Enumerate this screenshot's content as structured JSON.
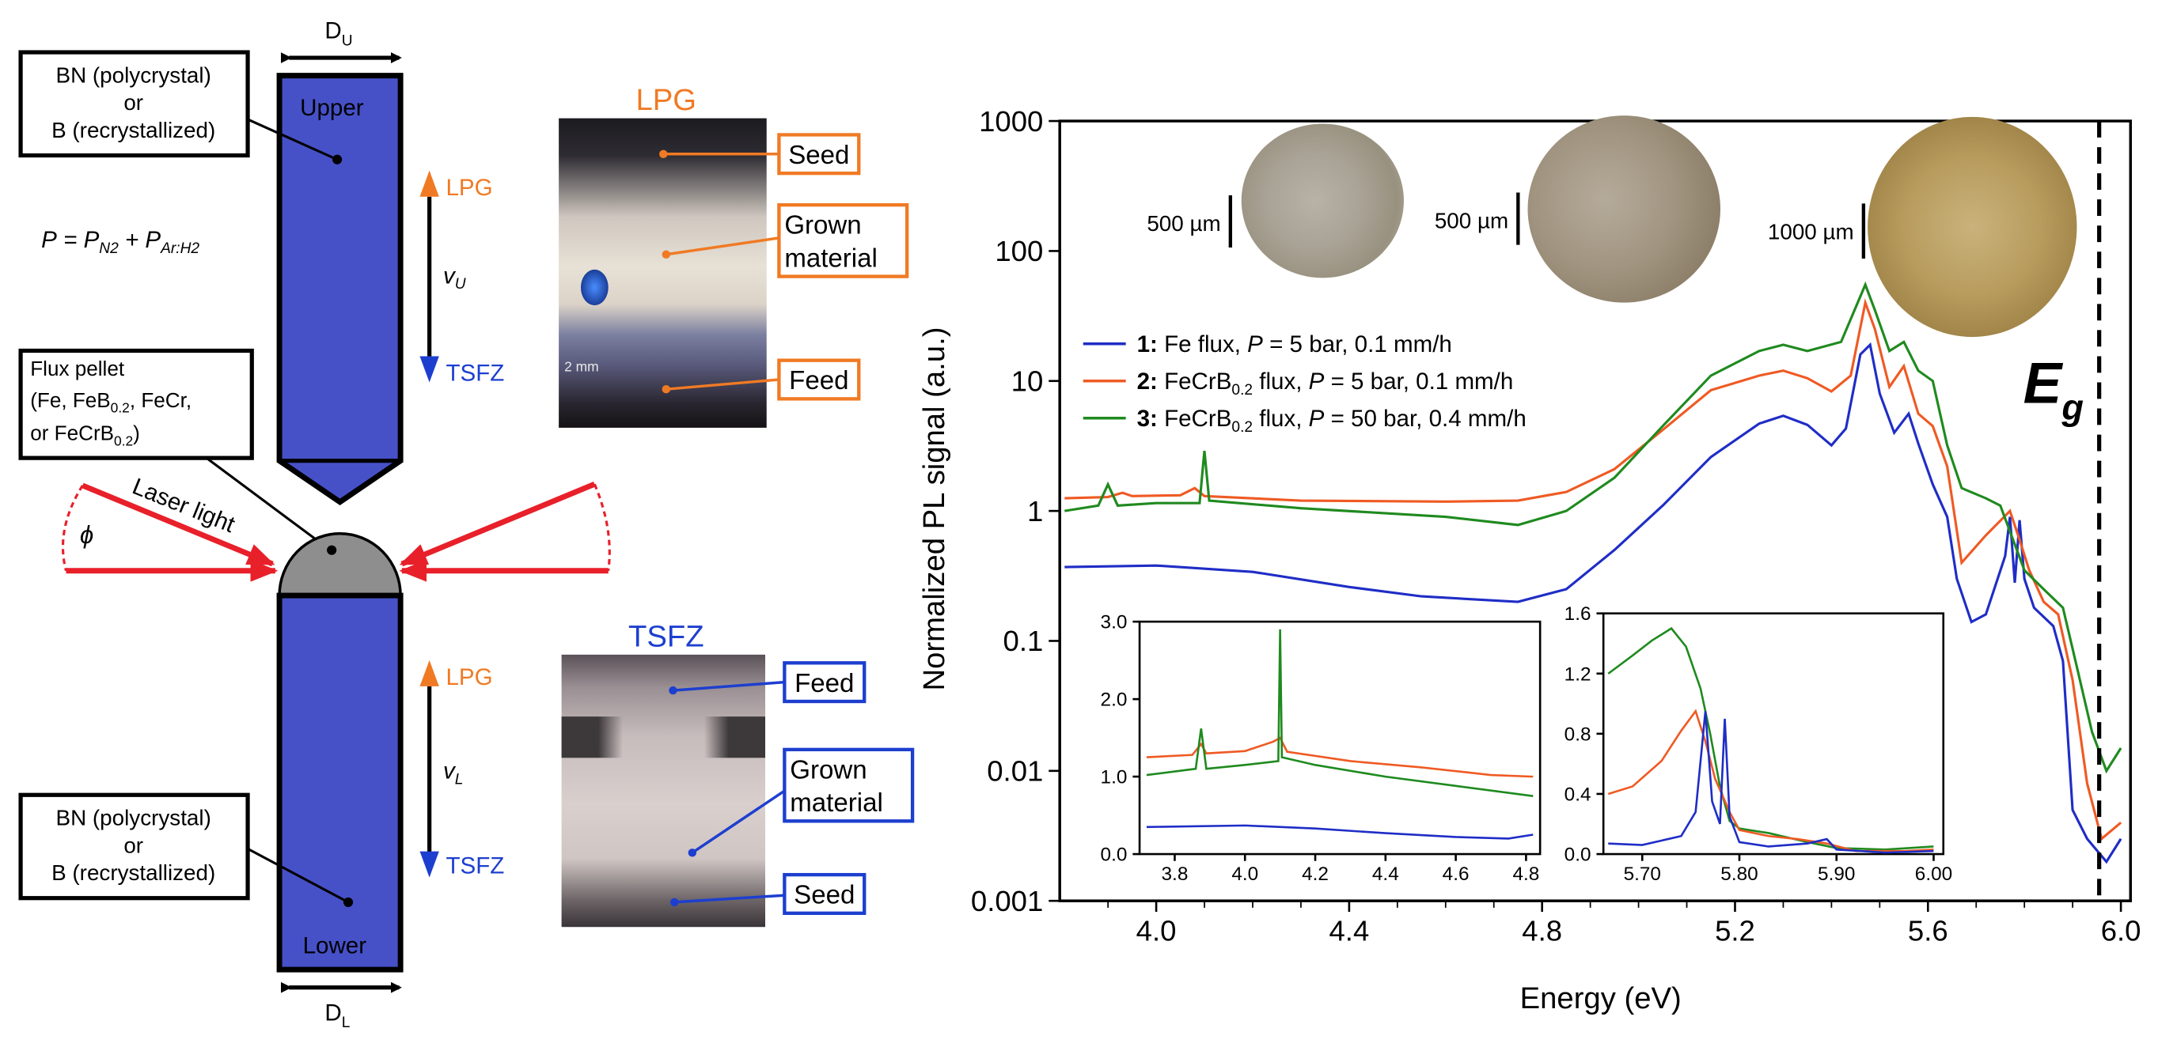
{
  "colors": {
    "pedestal": "#4651c8",
    "laser": "#e8202a",
    "lpg_orange": "#f07a24",
    "tsfz_blue": "#1d3fcf",
    "series_blue": "#1f2dc6",
    "series_orange": "#ef5a24",
    "series_green": "#1f8a1f"
  },
  "diagram": {
    "du": "D",
    "du_sub": "U",
    "dl": "D",
    "dl_sub": "L",
    "bn_top_line1": "BN (polycrystal)",
    "bn_top_line2": "or",
    "bn_top_line3": "B (recrystallized)",
    "upper": "Upper",
    "lower": "Lower",
    "pressure_P": "P",
    "pressure_eq": " = P",
    "pressure_n2": "N2",
    "pressure_plus": " + P",
    "pressure_ar": "Ar:H2",
    "lpg_arrow_up": "LPG",
    "tsfz_arrow_down": "TSFZ",
    "vu": "v",
    "vu_sub": "U",
    "vl": "v",
    "vl_sub": "L",
    "flux_line1": "Flux pellet",
    "flux_line2a": "(Fe, FeB",
    "flux_line2_sub": "0.2",
    "flux_line2b": ", FeCr,",
    "flux_line3a": "or FeCrB",
    "flux_line3_sub": "0.2",
    "flux_line3b": ")",
    "laser_light": "Laser light",
    "phi": "ϕ",
    "bn_bot_line1": "BN (polycrystal)",
    "bn_bot_line2": "or",
    "bn_bot_line3": "B (recrystallized)",
    "lpg_arrow_up2": "LPG",
    "tsfz_arrow_down2": "TSFZ"
  },
  "photos": {
    "lpg_title": "LPG",
    "lpg_seed": "Seed",
    "lpg_grown1": "Grown",
    "lpg_grown2": "material",
    "lpg_feed": "Feed",
    "lpg_scale": "2 mm",
    "tsfz_title": "TSFZ",
    "tsfz_feed": "Feed",
    "tsfz_grown1": "Grown",
    "tsfz_grown2": "material",
    "tsfz_seed": "Seed"
  },
  "crystals": {
    "scale1": "500 µm",
    "scale2": "500 µm",
    "scale3": "1000 µm"
  },
  "chart_data": [
    {
      "type": "line",
      "xlabel": "Energy (eV)",
      "ylabel": "Normalized PL signal (a.u.)",
      "yscale": "log",
      "xlim": [
        3.8,
        6.02
      ],
      "ylim": [
        0.001,
        1000
      ],
      "xticks": [
        "4.0",
        "4.4",
        "4.8",
        "5.2",
        "5.6",
        "6.0"
      ],
      "yticks": [
        "0.001",
        "0.01",
        "0.1",
        "1",
        "10",
        "100",
        "1000"
      ],
      "annotation": "E",
      "annotation_sub": "g",
      "eg_line_x": 5.955,
      "legend": [
        {
          "num": "1:",
          "a": " Fe flux, ",
          "p": "P",
          "b": " = 5 bar, 0.1 mm/h",
          "sub": ""
        },
        {
          "num": "2:",
          "a": " FeCrB",
          "sub": "0.2",
          "a2": " flux, ",
          "p": "P",
          "b": " = 5 bar, 0.1 mm/h"
        },
        {
          "num": "3:",
          "a": " FeCrB",
          "sub": "0.2",
          "a2": " flux, ",
          "p": "P",
          "b": " = 50 bar, 0.4 mm/h"
        }
      ],
      "series": [
        {
          "color": "#1f2dc6",
          "points": [
            [
              3.81,
              0.37
            ],
            [
              4.0,
              0.38
            ],
            [
              4.2,
              0.34
            ],
            [
              4.4,
              0.26
            ],
            [
              4.55,
              0.22
            ],
            [
              4.75,
              0.2
            ],
            [
              4.85,
              0.25
            ],
            [
              4.95,
              0.5
            ],
            [
              5.05,
              1.1
            ],
            [
              5.15,
              2.6
            ],
            [
              5.25,
              4.7
            ],
            [
              5.3,
              5.4
            ],
            [
              5.35,
              4.6
            ],
            [
              5.4,
              3.2
            ],
            [
              5.43,
              4.3
            ],
            [
              5.46,
              16
            ],
            [
              5.48,
              19
            ],
            [
              5.5,
              8
            ],
            [
              5.53,
              4
            ],
            [
              5.56,
              5.6
            ],
            [
              5.58,
              3.3
            ],
            [
              5.61,
              1.6
            ],
            [
              5.64,
              0.9
            ],
            [
              5.66,
              0.3
            ],
            [
              5.69,
              0.14
            ],
            [
              5.72,
              0.16
            ],
            [
              5.76,
              0.45
            ],
            [
              5.77,
              0.9
            ],
            [
              5.78,
              0.28
            ],
            [
              5.79,
              0.85
            ],
            [
              5.8,
              0.3
            ],
            [
              5.82,
              0.18
            ],
            [
              5.86,
              0.13
            ],
            [
              5.88,
              0.07
            ],
            [
              5.9,
              0.005
            ],
            [
              5.93,
              0.003
            ],
            [
              5.97,
              0.002
            ],
            [
              6.0,
              0.003
            ]
          ]
        },
        {
          "color": "#ef5a24",
          "points": [
            [
              3.81,
              1.25
            ],
            [
              3.9,
              1.28
            ],
            [
              3.93,
              1.38
            ],
            [
              3.95,
              1.3
            ],
            [
              4.05,
              1.32
            ],
            [
              4.08,
              1.5
            ],
            [
              4.1,
              1.3
            ],
            [
              4.3,
              1.2
            ],
            [
              4.6,
              1.18
            ],
            [
              4.75,
              1.2
            ],
            [
              4.85,
              1.4
            ],
            [
              4.95,
              2.1
            ],
            [
              5.05,
              4.2
            ],
            [
              5.15,
              8.5
            ],
            [
              5.25,
              11
            ],
            [
              5.3,
              12
            ],
            [
              5.35,
              10.5
            ],
            [
              5.4,
              8.3
            ],
            [
              5.44,
              11
            ],
            [
              5.47,
              40
            ],
            [
              5.49,
              25
            ],
            [
              5.52,
              9
            ],
            [
              5.55,
              13
            ],
            [
              5.58,
              5.6
            ],
            [
              5.61,
              4.5
            ],
            [
              5.64,
              2.2
            ],
            [
              5.67,
              0.4
            ],
            [
              5.72,
              0.65
            ],
            [
              5.77,
              1.0
            ],
            [
              5.79,
              0.6
            ],
            [
              5.81,
              0.35
            ],
            [
              5.84,
              0.2
            ],
            [
              5.87,
              0.16
            ],
            [
              5.9,
              0.05
            ],
            [
              5.93,
              0.008
            ],
            [
              5.96,
              0.003
            ],
            [
              6.0,
              0.004
            ]
          ]
        },
        {
          "color": "#1f8a1f",
          "points": [
            [
              3.81,
              1.0
            ],
            [
              3.88,
              1.1
            ],
            [
              3.9,
              1.6
            ],
            [
              3.92,
              1.1
            ],
            [
              4.0,
              1.15
            ],
            [
              4.09,
              1.15
            ],
            [
              4.1,
              2.9
            ],
            [
              4.11,
              1.2
            ],
            [
              4.3,
              1.05
            ],
            [
              4.6,
              0.9
            ],
            [
              4.75,
              0.78
            ],
            [
              4.85,
              1.0
            ],
            [
              4.95,
              1.8
            ],
            [
              5.05,
              4.5
            ],
            [
              5.15,
              11
            ],
            [
              5.25,
              17
            ],
            [
              5.3,
              19
            ],
            [
              5.35,
              17
            ],
            [
              5.42,
              20
            ],
            [
              5.47,
              55
            ],
            [
              5.49,
              35
            ],
            [
              5.52,
              17
            ],
            [
              5.55,
              20
            ],
            [
              5.58,
              12
            ],
            [
              5.61,
              10
            ],
            [
              5.64,
              3.2
            ],
            [
              5.67,
              1.5
            ],
            [
              5.72,
              1.25
            ],
            [
              5.75,
              1.1
            ],
            [
              5.8,
              0.35
            ],
            [
              5.84,
              0.25
            ],
            [
              5.88,
              0.18
            ],
            [
              5.91,
              0.06
            ],
            [
              5.94,
              0.02
            ],
            [
              5.97,
              0.01
            ],
            [
              6.0,
              0.015
            ]
          ]
        }
      ]
    },
    {
      "type": "line",
      "xlim": [
        3.7,
        4.84
      ],
      "ylim": [
        0.0,
        3.0
      ],
      "xticks": [
        "3.8",
        "4.0",
        "4.2",
        "4.4",
        "4.6",
        "4.8"
      ],
      "yticks": [
        "0.0",
        "1.0",
        "2.0",
        "3.0"
      ],
      "series": [
        {
          "color": "#1f2dc6",
          "points": [
            [
              3.72,
              0.35
            ],
            [
              4.0,
              0.37
            ],
            [
              4.2,
              0.33
            ],
            [
              4.4,
              0.27
            ],
            [
              4.6,
              0.22
            ],
            [
              4.75,
              0.2
            ],
            [
              4.82,
              0.25
            ]
          ]
        },
        {
          "color": "#ef5a24",
          "points": [
            [
              3.72,
              1.25
            ],
            [
              3.85,
              1.28
            ],
            [
              3.875,
              1.42
            ],
            [
              3.89,
              1.3
            ],
            [
              4.0,
              1.33
            ],
            [
              4.08,
              1.45
            ],
            [
              4.1,
              1.5
            ],
            [
              4.12,
              1.32
            ],
            [
              4.3,
              1.2
            ],
            [
              4.5,
              1.12
            ],
            [
              4.7,
              1.02
            ],
            [
              4.82,
              1.0
            ]
          ]
        },
        {
          "color": "#1f8a1f",
          "points": [
            [
              3.72,
              1.02
            ],
            [
              3.86,
              1.1
            ],
            [
              3.875,
              1.62
            ],
            [
              3.89,
              1.1
            ],
            [
              4.0,
              1.15
            ],
            [
              4.095,
              1.2
            ],
            [
              4.1,
              2.9
            ],
            [
              4.105,
              1.25
            ],
            [
              4.2,
              1.15
            ],
            [
              4.4,
              1.0
            ],
            [
              4.6,
              0.88
            ],
            [
              4.82,
              0.75
            ]
          ]
        }
      ]
    },
    {
      "type": "line",
      "xlim": [
        5.66,
        6.01
      ],
      "ylim": [
        0.0,
        1.6
      ],
      "xticks": [
        "5.70",
        "5.80",
        "5.90",
        "6.00"
      ],
      "yticks": [
        "0.0",
        "0.4",
        "0.8",
        "1.2",
        "1.6"
      ],
      "series": [
        {
          "color": "#1f8a1f",
          "points": [
            [
              5.665,
              1.2
            ],
            [
              5.69,
              1.32
            ],
            [
              5.71,
              1.42
            ],
            [
              5.73,
              1.5
            ],
            [
              5.745,
              1.38
            ],
            [
              5.76,
              1.1
            ],
            [
              5.77,
              0.8
            ],
            [
              5.78,
              0.45
            ],
            [
              5.79,
              0.22
            ],
            [
              5.8,
              0.17
            ],
            [
              5.83,
              0.14
            ],
            [
              5.87,
              0.08
            ],
            [
              5.9,
              0.04
            ],
            [
              5.95,
              0.03
            ],
            [
              6.0,
              0.05
            ]
          ]
        },
        {
          "color": "#ef5a24",
          "points": [
            [
              5.665,
              0.4
            ],
            [
              5.69,
              0.45
            ],
            [
              5.72,
              0.62
            ],
            [
              5.74,
              0.82
            ],
            [
              5.755,
              0.95
            ],
            [
              5.765,
              0.75
            ],
            [
              5.775,
              0.5
            ],
            [
              5.79,
              0.28
            ],
            [
              5.8,
              0.16
            ],
            [
              5.83,
              0.12
            ],
            [
              5.86,
              0.1
            ],
            [
              5.89,
              0.07
            ],
            [
              5.92,
              0.02
            ],
            [
              5.97,
              0.02
            ],
            [
              6.0,
              0.03
            ]
          ]
        },
        {
          "color": "#1f2dc6",
          "points": [
            [
              5.665,
              0.07
            ],
            [
              5.7,
              0.06
            ],
            [
              5.74,
              0.12
            ],
            [
              5.755,
              0.28
            ],
            [
              5.765,
              0.95
            ],
            [
              5.772,
              0.35
            ],
            [
              5.78,
              0.2
            ],
            [
              5.785,
              0.9
            ],
            [
              5.79,
              0.25
            ],
            [
              5.8,
              0.08
            ],
            [
              5.83,
              0.05
            ],
            [
              5.87,
              0.07
            ],
            [
              5.89,
              0.1
            ],
            [
              5.9,
              0.03
            ],
            [
              5.95,
              0.01
            ],
            [
              6.0,
              0.02
            ]
          ]
        }
      ]
    }
  ]
}
